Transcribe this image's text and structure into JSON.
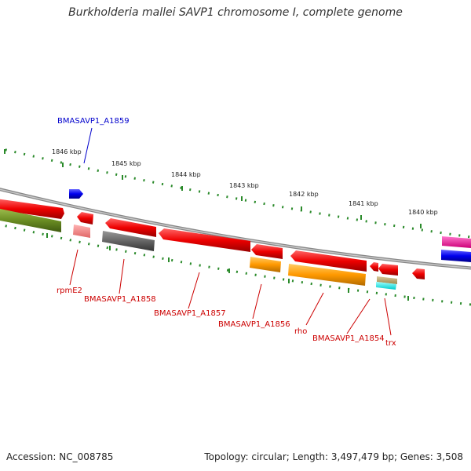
{
  "title": "Burkholderia mallei SAVP1 chromosome I, complete genome",
  "footer": {
    "accession": "Accession: NC_008785",
    "topology": "Topology: circular; Length: 3,497,479 bp; Genes: 3,508"
  },
  "scale_labels": [
    "1846 kbp",
    "1845 kbp",
    "1844 kbp",
    "1843 kbp",
    "1842 kbp",
    "1841 kbp",
    "1840 kbp"
  ],
  "gene_labels": [
    {
      "text": "BMASAVP1_A1859",
      "color": "#0000cc"
    },
    {
      "text": "rpmE2",
      "color": "#cc0000"
    },
    {
      "text": "BMASAVP1_A1858",
      "color": "#cc0000"
    },
    {
      "text": "BMASAVP1_A1857",
      "color": "#cc0000"
    },
    {
      "text": "BMASAVP1_A1856",
      "color": "#cc0000"
    },
    {
      "text": "rho",
      "color": "#cc0000"
    },
    {
      "text": "BMASAVP1_A1854",
      "color": "#cc0000"
    },
    {
      "text": "trx",
      "color": "#cc0000"
    }
  ],
  "colors": {
    "backbone": "#888888",
    "tick": "#2a8a2a",
    "cds_red": "#e60000",
    "orange": "#ff9900",
    "gray": "#666666",
    "olive": "#6b8e23",
    "pink": "#f08080",
    "blue": "#0000ee",
    "magenta": "#ee1199"
  }
}
